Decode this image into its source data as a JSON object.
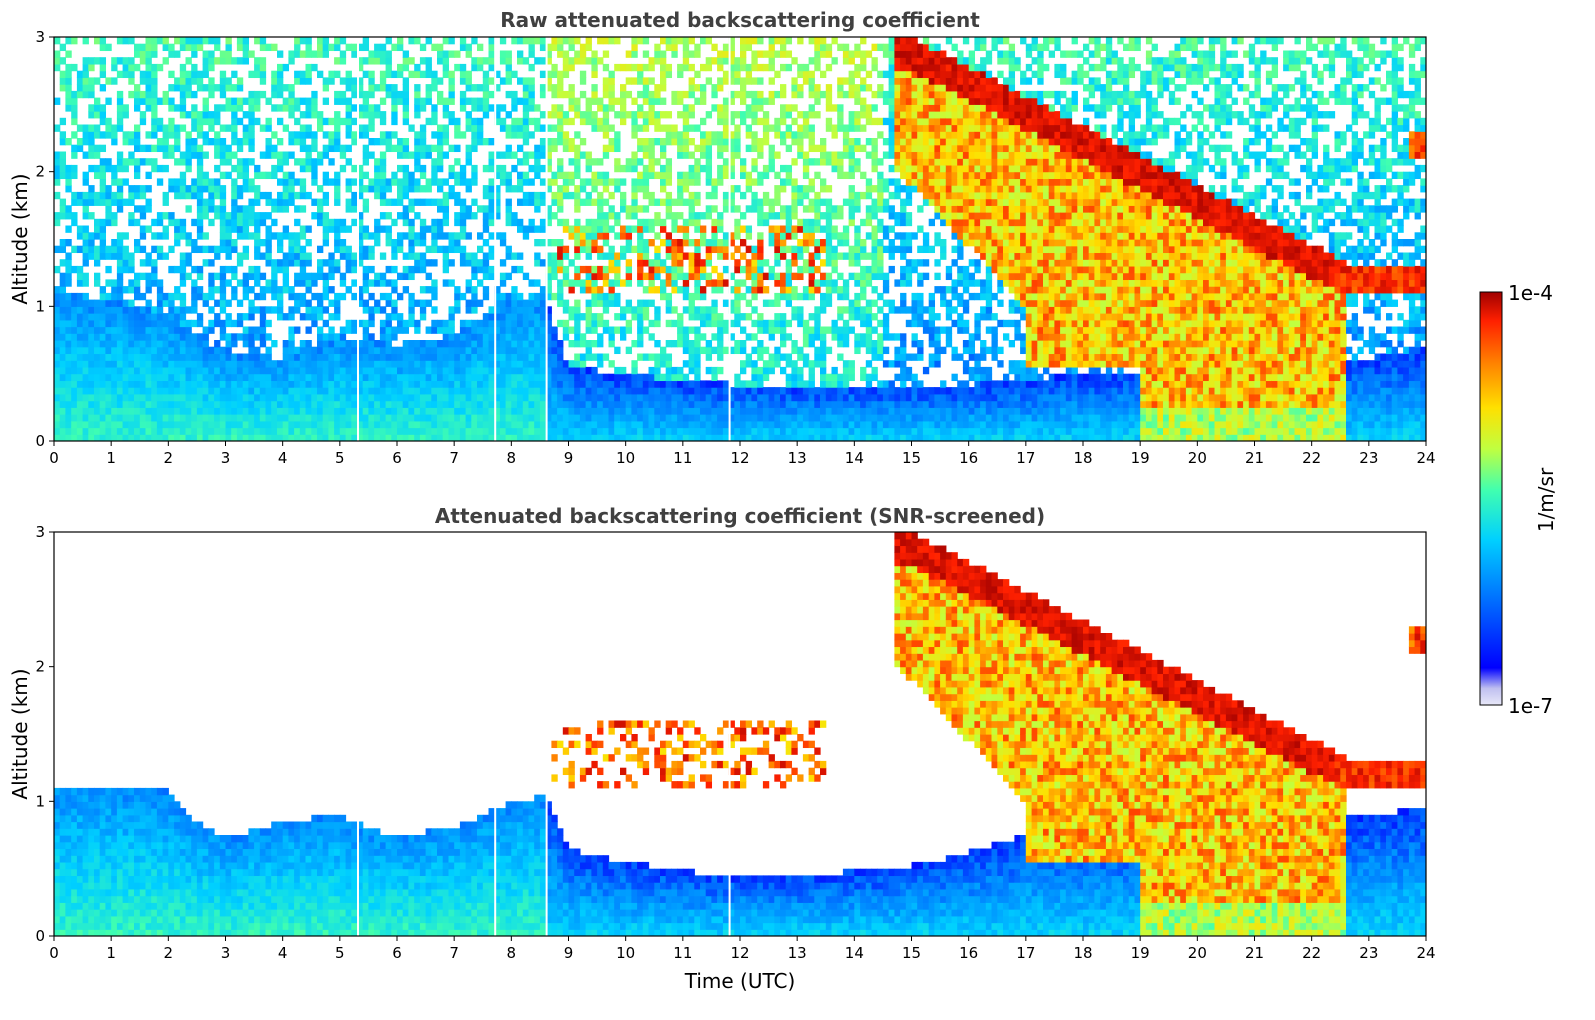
{
  "chart_data": [
    {
      "type": "heatmap",
      "title": "Raw attenuated backscattering coefficient",
      "xlabel": "",
      "ylabel": "Altitude (km)",
      "xlim": [
        0,
        24
      ],
      "ylim": [
        0,
        3
      ],
      "x_ticks": [
        "0",
        "1",
        "2",
        "3",
        "4",
        "5",
        "6",
        "7",
        "8",
        "9",
        "10",
        "11",
        "12",
        "13",
        "14",
        "15",
        "16",
        "17",
        "18",
        "19",
        "20",
        "21",
        "22",
        "23",
        "24"
      ],
      "y_ticks": [
        "0",
        "1",
        "2",
        "3"
      ],
      "screened": false,
      "features": {
        "boundary_layer_top_km": [
          [
            0,
            1.1
          ],
          [
            1,
            1.05
          ],
          [
            2,
            0.95
          ],
          [
            3,
            0.65
          ],
          [
            4,
            0.62
          ],
          [
            5,
            0.78
          ],
          [
            6,
            0.72
          ],
          [
            7,
            0.78
          ],
          [
            8,
            1.05
          ],
          [
            8.6,
            1.05
          ],
          [
            9,
            0.55
          ],
          [
            10,
            0.5
          ],
          [
            11,
            0.45
          ],
          [
            12,
            0.42
          ],
          [
            13,
            0.42
          ],
          [
            14,
            0.42
          ],
          [
            15,
            0.42
          ],
          [
            16,
            0.42
          ],
          [
            17,
            0.45
          ],
          [
            18,
            0.5
          ],
          [
            19,
            0.5
          ],
          [
            20,
            0.5
          ],
          [
            21,
            0.55
          ],
          [
            22,
            0.55
          ],
          [
            23,
            0.6
          ],
          [
            24,
            0.7
          ]
        ],
        "cloud_layers": [
          {
            "description": "mid-level patchy cloud",
            "time_start": 8.7,
            "time_end": 13.5,
            "altitude_km": [
              1.15,
              1.6
            ]
          },
          {
            "description": "descending thick cloud / precipitation",
            "time_start": 14.7,
            "time_end": 22.5,
            "altitude_km": [
              0,
              3
            ]
          },
          {
            "description": "low cloud layer",
            "time_start": 22.5,
            "time_end": 24,
            "altitude_km": [
              1.1,
              1.25
            ]
          },
          {
            "description": "small upper cloud",
            "time_start": 23.7,
            "time_end": 24,
            "altitude_km": [
              2.1,
              2.3
            ]
          }
        ],
        "data_gaps_utc": [
          5.3,
          7.7,
          8.6,
          11.8
        ]
      }
    },
    {
      "type": "heatmap",
      "title": "Attenuated backscattering coefficient (SNR-screened)",
      "xlabel": "Time (UTC)",
      "ylabel": "Altitude (km)",
      "xlim": [
        0,
        24
      ],
      "ylim": [
        0,
        3
      ],
      "x_ticks": [
        "0",
        "1",
        "2",
        "3",
        "4",
        "5",
        "6",
        "7",
        "8",
        "9",
        "10",
        "11",
        "12",
        "13",
        "14",
        "15",
        "16",
        "17",
        "18",
        "19",
        "20",
        "21",
        "22",
        "23",
        "24"
      ],
      "y_ticks": [
        "0",
        "1",
        "2",
        "3"
      ],
      "screened": true,
      "features": {
        "boundary_layer_top_km": [
          [
            0,
            1.12
          ],
          [
            1,
            1.12
          ],
          [
            2,
            1.08
          ],
          [
            2.3,
            0.9
          ],
          [
            3,
            0.72
          ],
          [
            4,
            0.85
          ],
          [
            5,
            0.9
          ],
          [
            5.5,
            0.8
          ],
          [
            6,
            0.75
          ],
          [
            7,
            0.8
          ],
          [
            7.7,
            0.95
          ],
          [
            8.6,
            1.05
          ],
          [
            9,
            0.65
          ],
          [
            10,
            0.55
          ],
          [
            11,
            0.48
          ],
          [
            12,
            0.45
          ],
          [
            13,
            0.45
          ],
          [
            14,
            0.48
          ],
          [
            15,
            0.52
          ],
          [
            16,
            0.62
          ],
          [
            17,
            0.75
          ],
          [
            18,
            0.7
          ],
          [
            19,
            0.75
          ],
          [
            20,
            0.8
          ],
          [
            21,
            0.85
          ],
          [
            22,
            0.85
          ],
          [
            23,
            0.9
          ],
          [
            24,
            0.95
          ]
        ],
        "cloud_layers": [
          {
            "description": "mid-level patchy cloud",
            "time_start": 8.7,
            "time_end": 13.5,
            "altitude_km": [
              1.15,
              1.6
            ]
          },
          {
            "description": "descending thick cloud / precipitation",
            "time_start": 14.7,
            "time_end": 22.5,
            "altitude_km": [
              0,
              3
            ]
          },
          {
            "description": "low cloud layer",
            "time_start": 22.5,
            "time_end": 24,
            "altitude_km": [
              1.1,
              1.25
            ]
          },
          {
            "description": "small upper cloud",
            "time_start": 23.7,
            "time_end": 24,
            "altitude_km": [
              2.1,
              2.3
            ]
          }
        ],
        "data_gaps_utc": [
          5.3,
          7.7,
          8.6,
          11.8
        ]
      }
    }
  ],
  "colorbar": {
    "label": "1/m/sr",
    "min_label": "1e-7",
    "max_label": "1e-4",
    "scale": "log",
    "colormap": "jet",
    "colors": [
      "#e8e8f8",
      "#0000ff",
      "#0080ff",
      "#00d0ff",
      "#40ffb0",
      "#c0ff40",
      "#ffe000",
      "#ff8000",
      "#ff2000",
      "#a00000"
    ]
  }
}
